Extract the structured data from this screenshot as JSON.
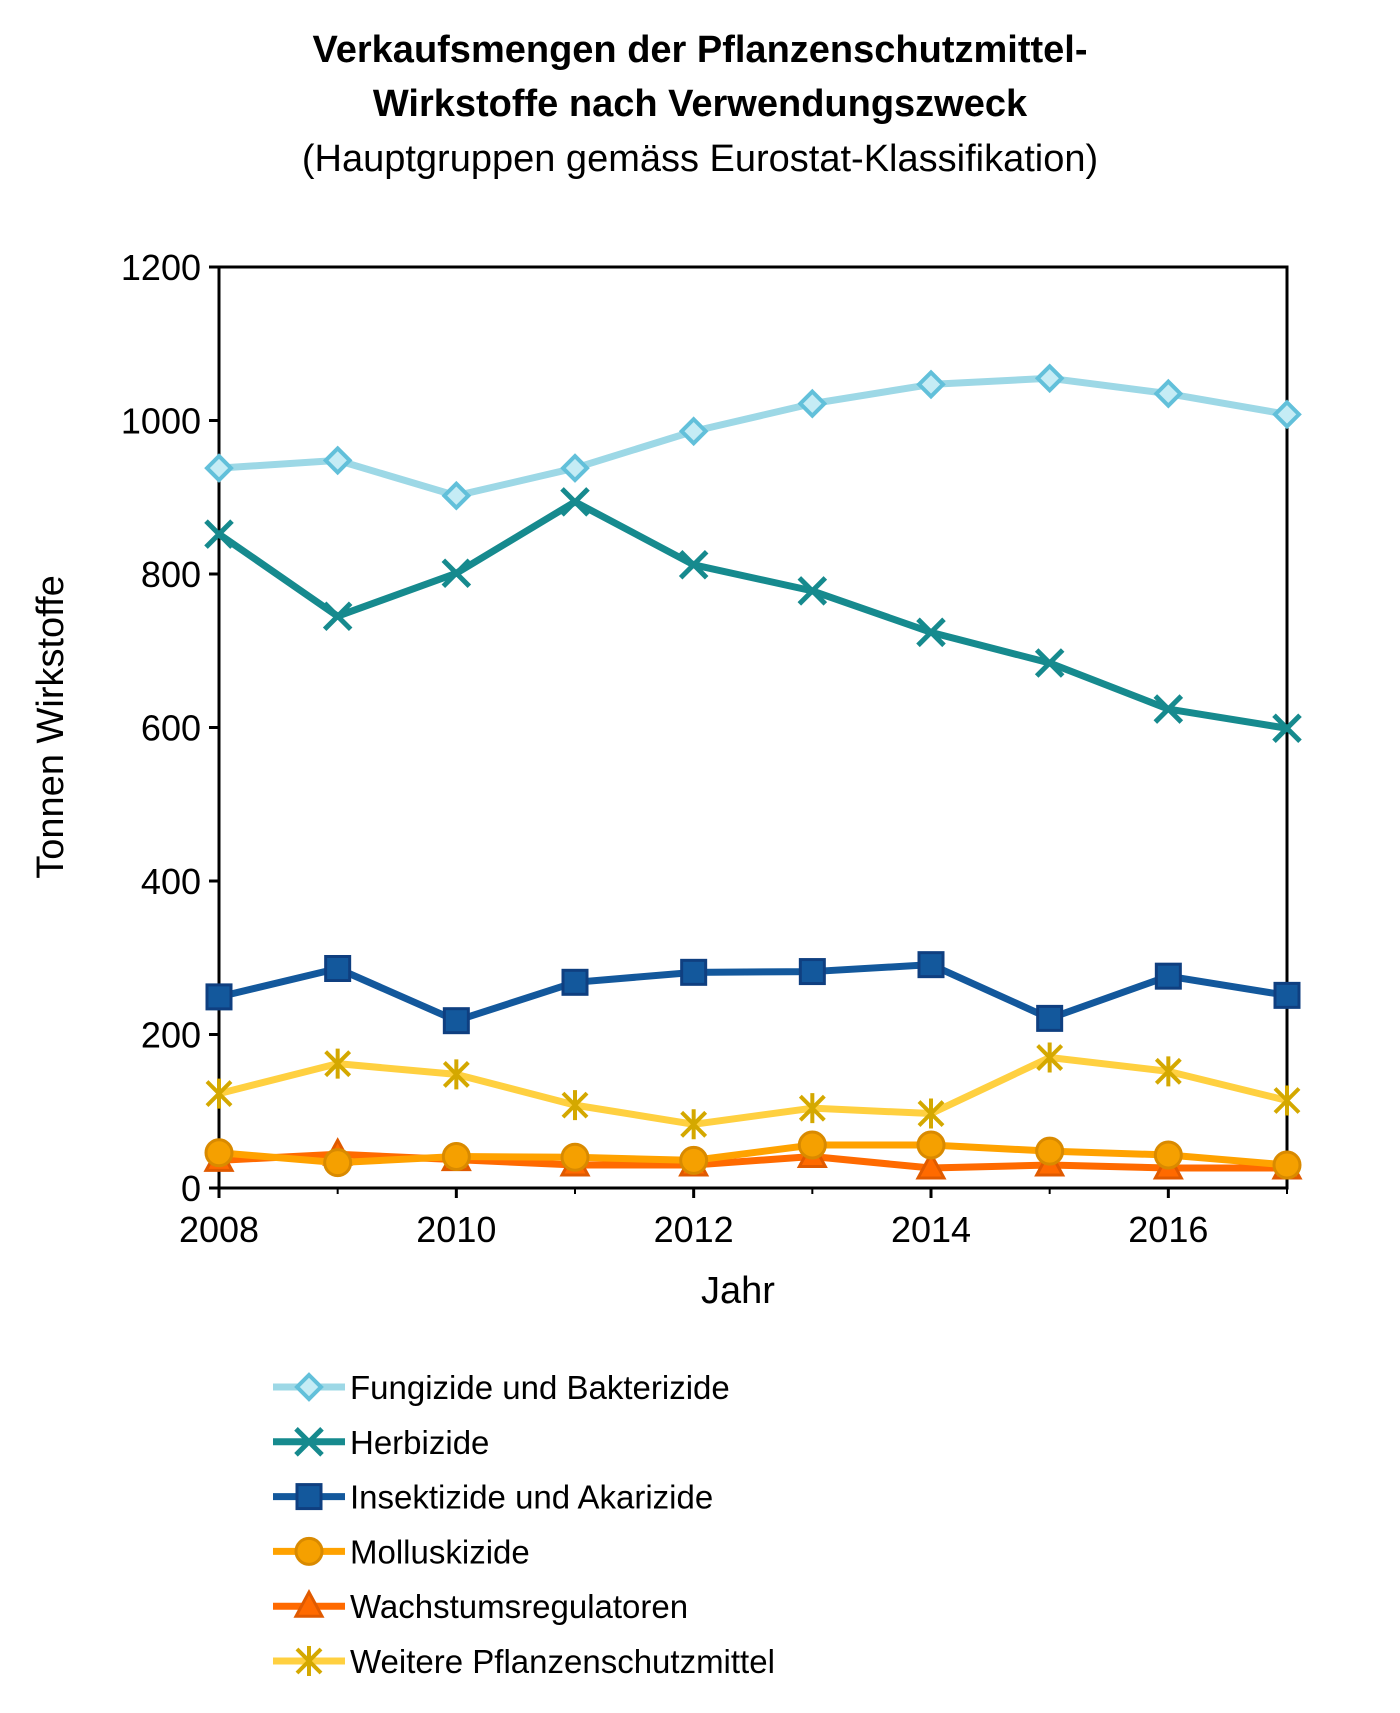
{
  "chart_data": {
    "type": "line",
    "title_line1": "Verkaufsmengen der Pflanzenschutzmittel-",
    "title_line2": "Wirkstoffe nach Verwendungszweck",
    "subtitle": "(Hauptgruppen gemäss Eurostat-Klassifikation)",
    "xlabel": "Jahr",
    "ylabel": "Tonnen Wirkstoffe",
    "x": [
      2008,
      2009,
      2010,
      2011,
      2012,
      2013,
      2014,
      2015,
      2016,
      2017
    ],
    "xlim": [
      2008,
      2017
    ],
    "ylim": [
      0,
      1200
    ],
    "xticks": [
      "2008",
      "2010",
      "2012",
      "2014",
      "2016"
    ],
    "yticks": [
      "0",
      "200",
      "400",
      "600",
      "800",
      "1000",
      "1200"
    ],
    "grid": false,
    "legend_position": "bottom",
    "series": [
      {
        "name": "Fungizide und Bakterizide",
        "marker": "diamond",
        "line_color": "#9dd8e6",
        "marker_color": "#62c0da",
        "values": [
          938,
          948,
          902,
          938,
          986,
          1022,
          1047,
          1055,
          1035,
          1008
        ]
      },
      {
        "name": "Herbizide",
        "marker": "x",
        "line_color": "#168a8e",
        "marker_color": "#168a8e",
        "values": [
          852,
          745,
          801,
          894,
          812,
          778,
          724,
          684,
          624,
          599
        ]
      },
      {
        "name": "Insektizide und Akarizide",
        "marker": "square",
        "line_color": "#13589c",
        "marker_color": "#0f3f80",
        "values": [
          249,
          286,
          218,
          268,
          281,
          282,
          291,
          221,
          276,
          251
        ]
      },
      {
        "name": "Molluskizide",
        "marker": "circle",
        "line_color": "#ffa200",
        "marker_color": "#d98a00",
        "values": [
          46,
          33,
          41,
          40,
          36,
          56,
          56,
          48,
          43,
          30
        ]
      },
      {
        "name": "Wachstumsregulatoren",
        "marker": "triangle",
        "line_color": "#ff6a00",
        "marker_color": "#e05a00",
        "values": [
          36,
          44,
          37,
          30,
          30,
          41,
          26,
          30,
          26,
          26
        ]
      },
      {
        "name": "Weitere Pflanzenschutzmittel",
        "marker": "star",
        "line_color": "#ffd040",
        "marker_color": "#d4a800",
        "values": [
          123,
          162,
          148,
          108,
          83,
          104,
          97,
          170,
          152,
          114
        ]
      }
    ]
  }
}
